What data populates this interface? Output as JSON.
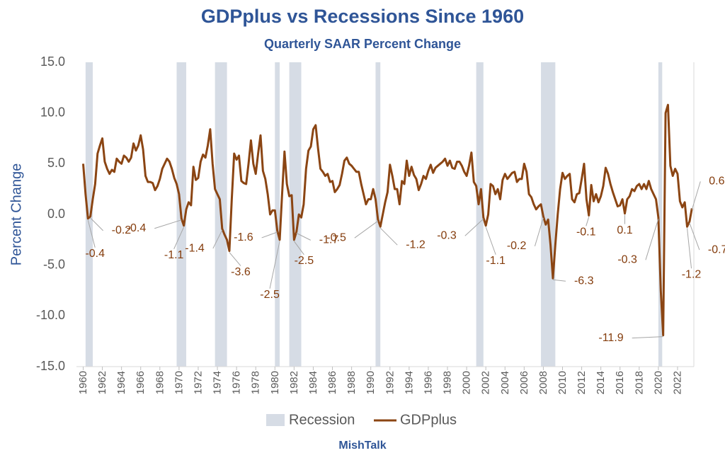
{
  "chart_data": {
    "type": "line",
    "title": "GDPplus vs Recessions Since 1960",
    "subtitle": "Quarterly SAAR Percent Change",
    "ylabel": "Percent Change",
    "source": "MishTalk",
    "xlim": [
      1959.3,
      2023.7
    ],
    "xticks": [
      1960,
      1962,
      1964,
      1966,
      1968,
      1970,
      1972,
      1974,
      1976,
      1978,
      1980,
      1982,
      1984,
      1986,
      1988,
      1990,
      1992,
      1994,
      1996,
      1998,
      2000,
      2002,
      2004,
      2006,
      2008,
      2010,
      2012,
      2014,
      2016,
      2018,
      2020,
      2022
    ],
    "ylim": [
      -15,
      15
    ],
    "yticks": [
      {
        "value": -15,
        "label": "-15.0"
      },
      {
        "value": -10,
        "label": "-10.0"
      },
      {
        "value": -5,
        "label": "-5.0"
      },
      {
        "value": 0,
        "label": "0.0"
      },
      {
        "value": 5,
        "label": "5.0"
      },
      {
        "value": 10,
        "label": "10.0"
      },
      {
        "value": 15,
        "label": "15.0"
      }
    ],
    "grid": false,
    "recessions": {
      "name": "Recession",
      "color": "#d6dce5",
      "ranges": [
        [
          1960.25,
          1961.0
        ],
        [
          1969.75,
          1970.75
        ],
        [
          1973.75,
          1975.0
        ],
        [
          1980.0,
          1980.5
        ],
        [
          1981.5,
          1982.75
        ],
        [
          1990.5,
          1991.0
        ],
        [
          2001.0,
          2001.75
        ],
        [
          2007.75,
          2009.25
        ],
        [
          2020.0,
          2020.4
        ]
      ]
    },
    "annotation_color": "#843c0c",
    "annotations": [
      {
        "x": 1960.5,
        "value": -0.4
      },
      {
        "x": 1960.75,
        "value": -0.2
      },
      {
        "x": 1970.25,
        "value": -0.4
      },
      {
        "x": 1970.5,
        "value": -1.1
      },
      {
        "x": 1974.5,
        "value": -1.4
      },
      {
        "x": 1975.25,
        "value": -3.6
      },
      {
        "x": 1980.5,
        "value": -2.5
      },
      {
        "x": 1980.25,
        "value": -1.6
      },
      {
        "x": 1982.0,
        "value": -2.5
      },
      {
        "x": 1982.25,
        "value": -1.7
      },
      {
        "x": 1990.75,
        "value": -0.5
      },
      {
        "x": 1991.0,
        "value": -1.2
      },
      {
        "x": 2001.75,
        "value": -0.3
      },
      {
        "x": 2002.0,
        "value": -1.1
      },
      {
        "x": 2008.0,
        "value": -0.2
      },
      {
        "x": 2009.0,
        "value": -6.3
      },
      {
        "x": 2012.75,
        "value": -0.1
      },
      {
        "x": 2016.5,
        "value": 0.1
      },
      {
        "x": 2020.0,
        "value": -0.3
      },
      {
        "x": 2020.5,
        "value": -11.9
      },
      {
        "x": 2023.0,
        "value": -1.2
      },
      {
        "x": 2023.5,
        "value": 0.6
      },
      {
        "x": 2023.25,
        "value": -0.7
      }
    ],
    "series": [
      {
        "name": "GDPplus",
        "color": "#8b4513",
        "x": [
          1960,
          1960.25,
          1960.5,
          1960.75,
          1961,
          1961.25,
          1961.5,
          1961.75,
          1962,
          1962.25,
          1962.5,
          1962.75,
          1963,
          1963.25,
          1963.5,
          1963.75,
          1964,
          1964.25,
          1964.5,
          1964.75,
          1965,
          1965.25,
          1965.5,
          1965.75,
          1966,
          1966.25,
          1966.5,
          1966.75,
          1967,
          1967.25,
          1967.5,
          1967.75,
          1968,
          1968.25,
          1968.5,
          1968.75,
          1969,
          1969.25,
          1969.5,
          1969.75,
          1970,
          1970.25,
          1970.5,
          1970.75,
          1971,
          1971.25,
          1971.5,
          1971.75,
          1972,
          1972.25,
          1972.5,
          1972.75,
          1973,
          1973.25,
          1973.5,
          1973.75,
          1974,
          1974.25,
          1974.5,
          1974.75,
          1975,
          1975.25,
          1975.5,
          1975.75,
          1976,
          1976.25,
          1976.5,
          1976.75,
          1977,
          1977.25,
          1977.5,
          1977.75,
          1978,
          1978.25,
          1978.5,
          1978.75,
          1979,
          1979.25,
          1979.5,
          1979.75,
          1980,
          1980.25,
          1980.5,
          1980.75,
          1981,
          1981.25,
          1981.5,
          1981.75,
          1982,
          1982.25,
          1982.5,
          1982.75,
          1983,
          1983.25,
          1983.5,
          1983.75,
          1984,
          1984.25,
          1984.5,
          1984.75,
          1985,
          1985.25,
          1985.5,
          1985.75,
          1986,
          1986.25,
          1986.5,
          1986.75,
          1987,
          1987.25,
          1987.5,
          1987.75,
          1988,
          1988.25,
          1988.5,
          1988.75,
          1989,
          1989.25,
          1989.5,
          1989.75,
          1990,
          1990.25,
          1990.5,
          1990.75,
          1991,
          1991.25,
          1991.5,
          1991.75,
          1992,
          1992.25,
          1992.5,
          1992.75,
          1993,
          1993.25,
          1993.5,
          1993.75,
          1994,
          1994.25,
          1994.5,
          1994.75,
          1995,
          1995.25,
          1995.5,
          1995.75,
          1996,
          1996.25,
          1996.5,
          1996.75,
          1997,
          1997.25,
          1997.5,
          1997.75,
          1998,
          1998.25,
          1998.5,
          1998.75,
          1999,
          1999.25,
          1999.5,
          1999.75,
          2000,
          2000.25,
          2000.5,
          2000.75,
          2001,
          2001.25,
          2001.5,
          2001.75,
          2002,
          2002.25,
          2002.5,
          2002.75,
          2003,
          2003.25,
          2003.5,
          2003.75,
          2004,
          2004.25,
          2004.5,
          2004.75,
          2005,
          2005.25,
          2005.5,
          2005.75,
          2006,
          2006.25,
          2006.5,
          2006.75,
          2007,
          2007.25,
          2007.5,
          2007.75,
          2008,
          2008.25,
          2008.5,
          2008.75,
          2009,
          2009.25,
          2009.5,
          2009.75,
          2010,
          2010.25,
          2010.5,
          2010.75,
          2011,
          2011.25,
          2011.5,
          2011.75,
          2012,
          2012.25,
          2012.5,
          2012.75,
          2013,
          2013.25,
          2013.5,
          2013.75,
          2014,
          2014.25,
          2014.5,
          2014.75,
          2015,
          2015.25,
          2015.5,
          2015.75,
          2016,
          2016.25,
          2016.5,
          2016.75,
          2017,
          2017.25,
          2017.5,
          2017.75,
          2018,
          2018.25,
          2018.5,
          2018.75,
          2019,
          2019.25,
          2019.5,
          2019.75,
          2020,
          2020.25,
          2020.5,
          2020.75,
          2021,
          2021.25,
          2021.5,
          2021.75,
          2022,
          2022.25,
          2022.5,
          2022.75,
          2023,
          2023.25,
          2023.5
        ],
        "values": [
          5.0,
          2.0,
          -0.4,
          -0.2,
          1.5,
          3.0,
          6.0,
          6.8,
          7.5,
          5.2,
          4.5,
          4.0,
          4.4,
          4.2,
          5.5,
          5.2,
          5.0,
          5.8,
          5.6,
          5.2,
          5.6,
          7.0,
          6.3,
          6.8,
          7.8,
          6.4,
          3.8,
          3.2,
          3.2,
          3.1,
          2.4,
          2.8,
          3.5,
          4.5,
          5.0,
          5.5,
          5.2,
          4.5,
          3.6,
          3.0,
          2.0,
          -0.4,
          -1.1,
          0.5,
          1.2,
          0.9,
          4.7,
          3.4,
          3.6,
          5.2,
          5.9,
          5.6,
          6.8,
          8.4,
          5.0,
          2.5,
          2.0,
          1.5,
          -1.4,
          -2.0,
          -2.5,
          -3.6,
          1.5,
          6.0,
          5.4,
          5.8,
          3.3,
          3.1,
          3.0,
          5.0,
          7.3,
          5.0,
          4.0,
          6.0,
          7.8,
          4.3,
          3.5,
          2.0,
          0.0,
          0.4,
          0.4,
          -1.6,
          -2.5,
          2.0,
          6.2,
          3.0,
          1.8,
          1.9,
          -2.5,
          -1.7,
          0.0,
          -0.3,
          1.0,
          4.5,
          6.3,
          6.7,
          8.4,
          8.8,
          6.5,
          4.5,
          4.2,
          3.8,
          4.0,
          3.2,
          3.3,
          2.2,
          2.5,
          2.9,
          4.0,
          5.3,
          5.6,
          5.0,
          4.8,
          4.5,
          4.2,
          4.2,
          3.0,
          2.0,
          1.0,
          1.5,
          1.5,
          2.5,
          1.5,
          -0.5,
          -1.2,
          0.0,
          1.2,
          2.2,
          4.9,
          3.8,
          2.5,
          2.5,
          1.0,
          3.3,
          3.0,
          5.3,
          3.8,
          4.7,
          3.9,
          3.5,
          2.4,
          3.0,
          3.8,
          3.5,
          4.3,
          4.9,
          4.1,
          4.6,
          4.8,
          5.0,
          5.2,
          5.5,
          4.8,
          5.3,
          4.6,
          4.5,
          5.2,
          5.2,
          4.8,
          4.2,
          3.8,
          4.8,
          6.1,
          3.2,
          2.8,
          1.0,
          2.5,
          -0.3,
          -1.1,
          0.0,
          3.0,
          2.8,
          2.0,
          2.5,
          1.5,
          3.4,
          4.0,
          3.5,
          3.8,
          4.1,
          4.2,
          3.2,
          3.5,
          3.5,
          5.0,
          4.2,
          2.0,
          1.7,
          1.0,
          0.5,
          0.8,
          1.0,
          -0.2,
          -1.0,
          -0.5,
          -3.0,
          -6.3,
          -3.0,
          0.0,
          2.5,
          4.1,
          3.5,
          3.8,
          4.0,
          1.5,
          1.2,
          2.0,
          2.1,
          3.5,
          5.0,
          1.5,
          -0.1,
          2.9,
          1.3,
          2.0,
          1.2,
          1.8,
          2.8,
          4.6,
          4.0,
          3.0,
          2.2,
          1.5,
          0.8,
          0.9,
          1.5,
          0.1,
          1.5,
          1.8,
          2.5,
          2.3,
          2.8,
          3.0,
          2.5,
          3.0,
          2.5,
          3.3,
          2.5,
          2.0,
          1.5,
          -0.3,
          -7.5,
          -11.9,
          10.0,
          10.8,
          4.8,
          3.8,
          4.5,
          4.0,
          1.3,
          0.7,
          1.2,
          -1.2,
          -0.7,
          0.6
        ]
      }
    ]
  }
}
